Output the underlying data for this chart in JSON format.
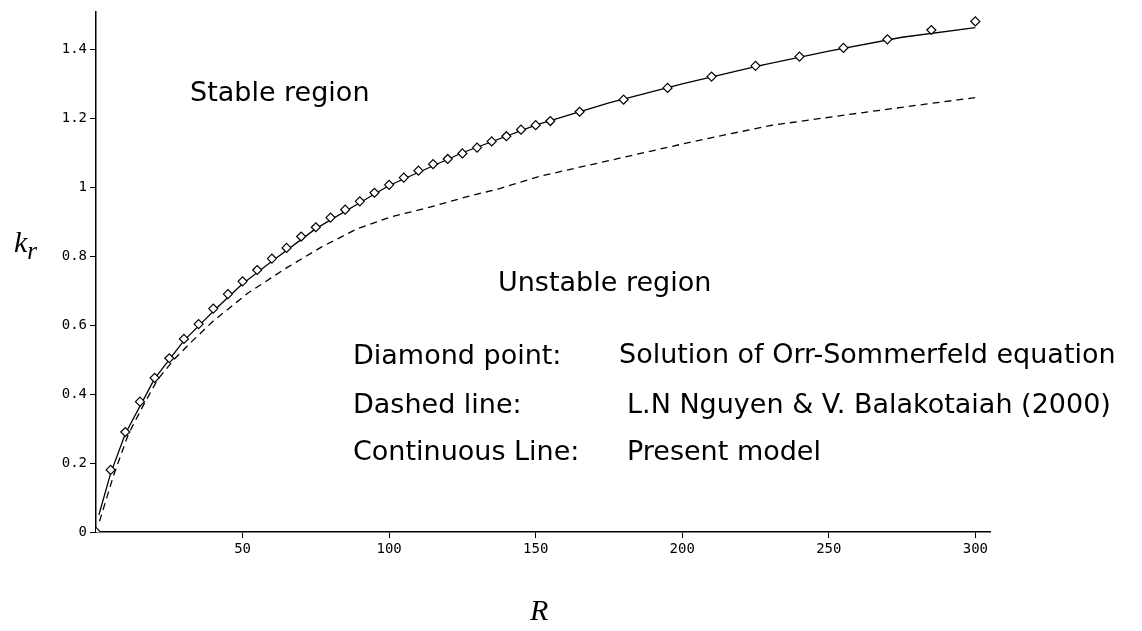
{
  "chart_data": {
    "type": "line",
    "xlabel": "R",
    "ylabel": "k$_{r}$",
    "xlim": [
      0,
      305
    ],
    "ylim": [
      0,
      1.51
    ],
    "xticks": [
      50,
      100,
      150,
      200,
      250,
      300
    ],
    "yticks": [
      0,
      0.2,
      0.4,
      0.6,
      0.8,
      1,
      1.2,
      1.4
    ],
    "tick_labels": true,
    "grid": false,
    "legend": false,
    "series": [
      {
        "type": "scatter",
        "marker": "diamond",
        "color": "#000000",
        "x": [
          0,
          5,
          10,
          15,
          20,
          25,
          30,
          35,
          40,
          45,
          50,
          55,
          60,
          65,
          70,
          75,
          80,
          85,
          90,
          95,
          100,
          105,
          110,
          115,
          120,
          125,
          130,
          135,
          140,
          145,
          150,
          155,
          165,
          180,
          195,
          210,
          225,
          240,
          255,
          270,
          285,
          300
        ],
        "values": [
          0,
          0.18,
          0.29,
          0.378,
          0.447,
          0.504,
          0.56,
          0.603,
          0.648,
          0.69,
          0.727,
          0.76,
          0.793,
          0.824,
          0.857,
          0.884,
          0.912,
          0.935,
          0.959,
          0.984,
          1.007,
          1.028,
          1.048,
          1.067,
          1.082,
          1.098,
          1.115,
          1.133,
          1.148,
          1.167,
          1.18,
          1.192,
          1.219,
          1.254,
          1.288,
          1.321,
          1.352,
          1.379,
          1.404,
          1.429,
          1.456,
          1.481
        ]
      },
      {
        "type": "line",
        "line_style": "dashed",
        "marker": "none",
        "color": "#000000",
        "x": [
          1.2,
          6,
          11,
          16,
          21,
          27,
          33,
          40,
          52,
          65,
          77,
          89,
          101,
          113,
          126,
          138,
          152,
          178,
          204,
          230,
          256,
          283,
          300
        ],
        "values": [
          0.031,
          0.164,
          0.283,
          0.365,
          0.442,
          0.504,
          0.555,
          0.612,
          0.694,
          0.766,
          0.827,
          0.879,
          0.915,
          0.94,
          0.971,
          0.997,
          1.033,
          1.083,
          1.133,
          1.179,
          1.21,
          1.241,
          1.26
        ]
      },
      {
        "type": "line",
        "line_style": "solid",
        "marker": "none",
        "color": "#000000",
        "x": [
          1,
          5,
          10,
          20,
          30,
          40,
          50,
          60,
          75,
          90,
          100,
          125,
          150,
          175,
          200,
          225,
          250,
          275,
          300
        ],
        "values": [
          0.05,
          0.17,
          0.285,
          0.445,
          0.555,
          0.64,
          0.72,
          0.785,
          0.88,
          0.955,
          1.005,
          1.1,
          1.18,
          1.245,
          1.3,
          1.35,
          1.395,
          1.435,
          1.463
        ]
      }
    ],
    "annotations": [
      "Stable region",
      "Unstable region",
      "Diamond point:",
      "Solution of Orr-Sommerfeld equation",
      "Dashed line:",
      "L.N Nguyen & V. Balakotaiah (2000)",
      "Continuous Line:",
      "Present model"
    ]
  }
}
